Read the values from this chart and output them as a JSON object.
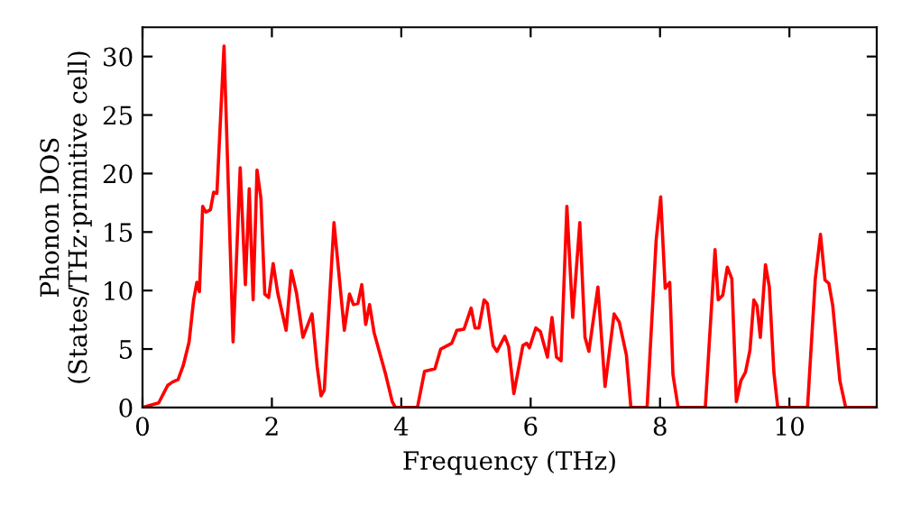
{
  "chart_data": {
    "type": "line",
    "xlabel": "Frequency (THz)",
    "ylabel": "Phonon DOS\n(States/THz·primitive cell)",
    "xlim": [
      0,
      11.35
    ],
    "ylim": [
      0,
      32.5
    ],
    "xticks": [
      0,
      2,
      4,
      6,
      8,
      10
    ],
    "yticks": [
      0,
      5,
      10,
      15,
      20,
      25,
      30
    ],
    "grid": false,
    "legend": false,
    "marker": "none",
    "line_style": "solid",
    "series": [
      {
        "color": "#ff0000",
        "x": [
          0,
          0.25,
          0.39,
          0.47,
          0.55,
          0.63,
          0.72,
          0.79,
          0.84,
          0.88,
          0.93,
          0.98,
          1.05,
          1.1,
          1.15,
          1.26,
          1.4,
          1.51,
          1.59,
          1.65,
          1.71,
          1.77,
          1.83,
          1.89,
          1.95,
          2.02,
          2.09,
          2.22,
          2.3,
          2.38,
          2.48,
          2.62,
          2.7,
          2.76,
          2.81,
          2.96,
          3.12,
          3.2,
          3.26,
          3.33,
          3.39,
          3.45,
          3.51,
          3.58,
          3.67,
          3.76,
          3.86,
          3.91,
          4.25,
          4.36,
          4.52,
          4.61,
          4.78,
          4.86,
          4.97,
          5.08,
          5.14,
          5.2,
          5.28,
          5.33,
          5.42,
          5.48,
          5.6,
          5.66,
          5.74,
          5.88,
          5.94,
          5.98,
          6.08,
          6.15,
          6.26,
          6.33,
          6.4,
          6.47,
          6.56,
          6.65,
          6.76,
          6.84,
          6.9,
          7.04,
          7.15,
          7.29,
          7.37,
          7.48,
          7.55,
          7.8,
          7.94,
          8.01,
          8.08,
          8.15,
          8.2,
          8.28,
          8.7,
          8.85,
          8.9,
          8.97,
          9.04,
          9.11,
          9.18,
          9.25,
          9.32,
          9.39,
          9.45,
          9.5,
          9.55,
          9.63,
          9.69,
          9.76,
          9.82,
          10.28,
          10.4,
          10.48,
          10.55,
          10.61,
          10.67,
          10.78,
          10.87,
          11.35
        ],
        "values": [
          0,
          0.4,
          1.9,
          2.2,
          2.4,
          3.6,
          5.6,
          9.2,
          10.7,
          9.9,
          17.2,
          16.7,
          16.9,
          18.4,
          18.3,
          30.9,
          5.6,
          20.5,
          10.5,
          18.7,
          9.2,
          20.3,
          17.9,
          9.7,
          9.4,
          12.3,
          9.8,
          6.6,
          11.7,
          9.8,
          6.0,
          8.0,
          3.5,
          1.0,
          1.5,
          15.8,
          6.6,
          9.7,
          8.8,
          8.9,
          10.5,
          7.1,
          8.8,
          6.4,
          4.6,
          2.8,
          0.5,
          0,
          0,
          3.1,
          3.3,
          5.0,
          5.5,
          6.6,
          6.7,
          8.5,
          6.8,
          6.8,
          9.2,
          8.9,
          5.3,
          4.8,
          6.1,
          5.2,
          1.2,
          5.3,
          5.5,
          5.1,
          6.8,
          6.5,
          4.3,
          7.7,
          4.3,
          4.0,
          17.2,
          7.7,
          15.8,
          6.0,
          4.8,
          10.3,
          1.8,
          8.0,
          7.3,
          4.5,
          0,
          0,
          14.3,
          18.0,
          10.2,
          10.7,
          2.8,
          0,
          0,
          13.5,
          9.2,
          9.6,
          12.0,
          11.0,
          0.5,
          2.3,
          3.0,
          4.9,
          9.2,
          8.7,
          6.0,
          12.2,
          10.3,
          3.0,
          0,
          0,
          11.0,
          14.8,
          10.9,
          10.6,
          8.7,
          2.3,
          0,
          0
        ]
      }
    ]
  }
}
